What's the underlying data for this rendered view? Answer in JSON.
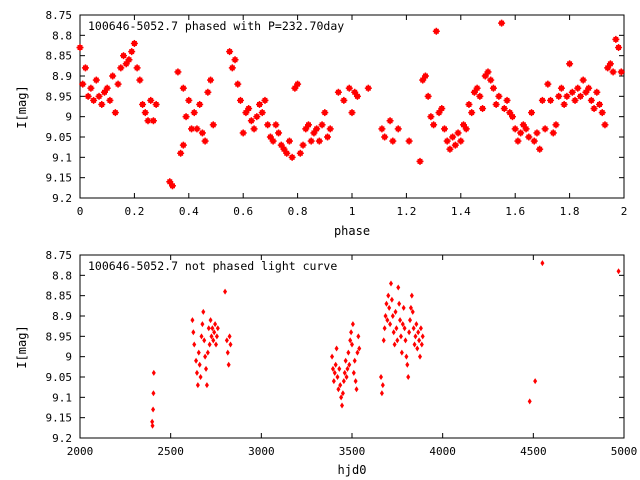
{
  "chart_data": [
    {
      "type": "scatter",
      "title": "100646-5052.7 phased with P=232.70day",
      "xlabel": "phase",
      "ylabel": "I[mag]",
      "xlim": [
        0,
        2
      ],
      "ylim": [
        8.75,
        9.2
      ],
      "y_inverted": true,
      "x_ticks": [
        "0",
        "0.2",
        "0.4",
        "0.6",
        "0.8",
        "1",
        "1.2",
        "1.4",
        "1.6",
        "1.8",
        "2"
      ],
      "y_ticks": [
        "8.75",
        "8.8",
        "8.85",
        "8.9",
        "8.95",
        "9",
        "9.05",
        "9.1",
        "9.15",
        "9.2"
      ],
      "marker": "star",
      "color": "#ff0000",
      "points": [
        [
          0.0,
          8.83
        ],
        [
          0.01,
          8.92
        ],
        [
          0.02,
          8.88
        ],
        [
          0.03,
          8.95
        ],
        [
          0.04,
          8.93
        ],
        [
          0.05,
          8.96
        ],
        [
          0.06,
          8.91
        ],
        [
          0.07,
          8.95
        ],
        [
          0.08,
          8.97
        ],
        [
          0.09,
          8.94
        ],
        [
          0.1,
          8.93
        ],
        [
          0.11,
          8.96
        ],
        [
          0.12,
          8.9
        ],
        [
          0.13,
          8.99
        ],
        [
          0.14,
          8.92
        ],
        [
          0.15,
          8.88
        ],
        [
          0.16,
          8.85
        ],
        [
          0.17,
          8.87
        ],
        [
          0.18,
          8.86
        ],
        [
          0.19,
          8.84
        ],
        [
          0.2,
          8.82
        ],
        [
          0.21,
          8.88
        ],
        [
          0.22,
          8.91
        ],
        [
          0.23,
          8.97
        ],
        [
          0.24,
          8.99
        ],
        [
          0.25,
          9.01
        ],
        [
          0.26,
          8.96
        ],
        [
          0.27,
          9.01
        ],
        [
          0.28,
          8.97
        ],
        [
          0.33,
          9.16
        ],
        [
          0.34,
          9.17
        ],
        [
          0.36,
          8.89
        ],
        [
          0.37,
          9.09
        ],
        [
          0.38,
          9.07
        ],
        [
          0.38,
          8.93
        ],
        [
          0.39,
          9.0
        ],
        [
          0.4,
          8.96
        ],
        [
          0.41,
          9.03
        ],
        [
          0.42,
          8.99
        ],
        [
          0.43,
          9.03
        ],
        [
          0.44,
          8.97
        ],
        [
          0.45,
          9.04
        ],
        [
          0.46,
          9.06
        ],
        [
          0.47,
          8.94
        ],
        [
          0.48,
          8.91
        ],
        [
          0.49,
          9.02
        ],
        [
          0.55,
          8.84
        ],
        [
          0.56,
          8.88
        ],
        [
          0.57,
          8.86
        ],
        [
          0.58,
          8.92
        ],
        [
          0.59,
          8.96
        ],
        [
          0.6,
          9.04
        ],
        [
          0.61,
          8.99
        ],
        [
          0.62,
          8.98
        ],
        [
          0.63,
          9.01
        ],
        [
          0.64,
          9.03
        ],
        [
          0.65,
          9.0
        ],
        [
          0.66,
          8.97
        ],
        [
          0.67,
          8.99
        ],
        [
          0.68,
          8.96
        ],
        [
          0.69,
          9.02
        ],
        [
          0.7,
          9.05
        ],
        [
          0.71,
          9.06
        ],
        [
          0.72,
          9.02
        ],
        [
          0.73,
          9.04
        ],
        [
          0.74,
          9.07
        ],
        [
          0.75,
          9.08
        ],
        [
          0.76,
          9.09
        ],
        [
          0.77,
          9.06
        ],
        [
          0.78,
          9.1
        ],
        [
          0.79,
          8.93
        ],
        [
          0.8,
          8.92
        ],
        [
          0.81,
          9.09
        ],
        [
          0.82,
          9.07
        ],
        [
          0.83,
          9.03
        ],
        [
          0.84,
          9.02
        ],
        [
          0.85,
          9.06
        ],
        [
          0.86,
          9.04
        ],
        [
          0.87,
          9.03
        ],
        [
          0.88,
          9.06
        ],
        [
          0.89,
          9.02
        ],
        [
          0.9,
          8.99
        ],
        [
          0.91,
          9.05
        ],
        [
          0.92,
          9.03
        ],
        [
          0.95,
          8.94
        ],
        [
          0.97,
          8.96
        ],
        [
          0.99,
          8.93
        ],
        [
          1.0,
          8.99
        ],
        [
          1.01,
          8.94
        ],
        [
          1.02,
          8.95
        ],
        [
          1.06,
          8.93
        ],
        [
          1.11,
          9.03
        ],
        [
          1.12,
          9.05
        ],
        [
          1.14,
          9.01
        ],
        [
          1.15,
          9.06
        ],
        [
          1.17,
          9.03
        ],
        [
          1.21,
          9.06
        ],
        [
          1.25,
          9.11
        ],
        [
          1.26,
          8.91
        ],
        [
          1.27,
          8.9
        ],
        [
          1.28,
          8.95
        ],
        [
          1.29,
          9.0
        ],
        [
          1.3,
          9.02
        ],
        [
          1.31,
          8.79
        ],
        [
          1.32,
          8.99
        ],
        [
          1.33,
          8.98
        ],
        [
          1.34,
          9.03
        ],
        [
          1.35,
          9.06
        ],
        [
          1.36,
          9.08
        ],
        [
          1.37,
          9.05
        ],
        [
          1.38,
          9.07
        ],
        [
          1.39,
          9.04
        ],
        [
          1.4,
          9.06
        ],
        [
          1.41,
          9.02
        ],
        [
          1.42,
          9.03
        ],
        [
          1.43,
          8.97
        ],
        [
          1.44,
          8.99
        ],
        [
          1.45,
          8.94
        ],
        [
          1.46,
          8.93
        ],
        [
          1.47,
          8.95
        ],
        [
          1.48,
          8.98
        ],
        [
          1.49,
          8.9
        ],
        [
          1.5,
          8.89
        ],
        [
          1.51,
          8.91
        ],
        [
          1.52,
          8.93
        ],
        [
          1.53,
          8.97
        ],
        [
          1.54,
          8.95
        ],
        [
          1.55,
          8.77
        ],
        [
          1.56,
          8.98
        ],
        [
          1.57,
          8.96
        ],
        [
          1.58,
          8.99
        ],
        [
          1.59,
          9.0
        ],
        [
          1.6,
          9.03
        ],
        [
          1.61,
          9.06
        ],
        [
          1.62,
          9.04
        ],
        [
          1.63,
          9.02
        ],
        [
          1.64,
          9.03
        ],
        [
          1.65,
          9.05
        ],
        [
          1.66,
          8.99
        ],
        [
          1.67,
          9.06
        ],
        [
          1.68,
          9.04
        ],
        [
          1.69,
          9.08
        ],
        [
          1.7,
          8.96
        ],
        [
          1.71,
          9.03
        ],
        [
          1.72,
          8.92
        ],
        [
          1.73,
          8.96
        ],
        [
          1.74,
          9.04
        ],
        [
          1.75,
          9.02
        ],
        [
          1.76,
          8.95
        ],
        [
          1.77,
          8.93
        ],
        [
          1.78,
          8.97
        ],
        [
          1.79,
          8.95
        ],
        [
          1.8,
          8.87
        ],
        [
          1.81,
          8.94
        ],
        [
          1.82,
          8.96
        ],
        [
          1.83,
          8.93
        ],
        [
          1.84,
          8.95
        ],
        [
          1.85,
          8.91
        ],
        [
          1.86,
          8.94
        ],
        [
          1.87,
          8.93
        ],
        [
          1.88,
          8.96
        ],
        [
          1.89,
          8.98
        ],
        [
          1.9,
          8.94
        ],
        [
          1.91,
          8.97
        ],
        [
          1.92,
          8.99
        ],
        [
          1.93,
          9.02
        ],
        [
          1.94,
          8.88
        ],
        [
          1.95,
          8.87
        ],
        [
          1.96,
          8.89
        ],
        [
          1.97,
          8.81
        ],
        [
          1.98,
          8.83
        ],
        [
          1.99,
          8.89
        ]
      ]
    },
    {
      "type": "scatter",
      "title": "100646-5052.7 not phased light curve",
      "xlabel": "hjd0",
      "ylabel": "I[mag]",
      "xlim": [
        2000,
        5000
      ],
      "ylim": [
        8.75,
        9.2
      ],
      "y_inverted": true,
      "x_ticks": [
        "2000",
        "2500",
        "3000",
        "3500",
        "4000",
        "4500",
        "5000"
      ],
      "y_ticks": [
        "8.75",
        "8.8",
        "8.85",
        "8.9",
        "8.95",
        "9",
        "9.05",
        "9.1",
        "9.15",
        "9.2"
      ],
      "marker": "diamond",
      "color": "#ff0000",
      "points": [
        [
          2398,
          9.16
        ],
        [
          2400,
          9.17
        ],
        [
          2403,
          9.13
        ],
        [
          2405,
          9.09
        ],
        [
          2407,
          9.04
        ],
        [
          2620,
          8.91
        ],
        [
          2625,
          8.94
        ],
        [
          2630,
          8.97
        ],
        [
          2640,
          9.01
        ],
        [
          2645,
          9.04
        ],
        [
          2650,
          9.07
        ],
        [
          2655,
          8.99
        ],
        [
          2660,
          9.02
        ],
        [
          2665,
          9.05
        ],
        [
          2670,
          8.95
        ],
        [
          2675,
          8.92
        ],
        [
          2680,
          8.89
        ],
        [
          2685,
          8.96
        ],
        [
          2690,
          9.0
        ],
        [
          2695,
          9.03
        ],
        [
          2700,
          9.07
        ],
        [
          2705,
          8.99
        ],
        [
          2710,
          8.93
        ],
        [
          2715,
          8.97
        ],
        [
          2720,
          8.91
        ],
        [
          2725,
          8.95
        ],
        [
          2730,
          8.93
        ],
        [
          2735,
          8.96
        ],
        [
          2740,
          8.94
        ],
        [
          2745,
          8.92
        ],
        [
          2750,
          8.97
        ],
        [
          2755,
          8.95
        ],
        [
          2760,
          8.93
        ],
        [
          2800,
          8.84
        ],
        [
          2810,
          8.96
        ],
        [
          2815,
          8.99
        ],
        [
          2820,
          9.02
        ],
        [
          2825,
          8.95
        ],
        [
          2830,
          8.97
        ],
        [
          3390,
          9.0
        ],
        [
          3395,
          9.03
        ],
        [
          3400,
          9.06
        ],
        [
          3405,
          9.04
        ],
        [
          3410,
          9.02
        ],
        [
          3415,
          8.98
        ],
        [
          3420,
          9.05
        ],
        [
          3425,
          9.08
        ],
        [
          3430,
          9.03
        ],
        [
          3435,
          9.07
        ],
        [
          3440,
          9.1
        ],
        [
          3445,
          9.12
        ],
        [
          3450,
          9.09
        ],
        [
          3455,
          9.06
        ],
        [
          3460,
          9.04
        ],
        [
          3465,
          9.01
        ],
        [
          3470,
          9.05
        ],
        [
          3475,
          9.03
        ],
        [
          3480,
          8.99
        ],
        [
          3485,
          9.02
        ],
        [
          3490,
          8.96
        ],
        [
          3495,
          8.94
        ],
        [
          3500,
          8.97
        ],
        [
          3505,
          8.92
        ],
        [
          3510,
          9.04
        ],
        [
          3515,
          9.01
        ],
        [
          3520,
          9.06
        ],
        [
          3525,
          9.08
        ],
        [
          3530,
          8.99
        ],
        [
          3535,
          8.95
        ],
        [
          3540,
          8.98
        ],
        [
          3660,
          9.05
        ],
        [
          3665,
          9.09
        ],
        [
          3670,
          9.07
        ],
        [
          3675,
          8.96
        ],
        [
          3680,
          8.93
        ],
        [
          3685,
          8.9
        ],
        [
          3690,
          8.87
        ],
        [
          3695,
          8.91
        ],
        [
          3700,
          8.85
        ],
        [
          3705,
          8.88
        ],
        [
          3710,
          8.92
        ],
        [
          3715,
          8.82
        ],
        [
          3720,
          8.86
        ],
        [
          3725,
          8.9
        ],
        [
          3730,
          8.94
        ],
        [
          3735,
          8.97
        ],
        [
          3740,
          8.89
        ],
        [
          3745,
          8.93
        ],
        [
          3750,
          8.96
        ],
        [
          3755,
          8.83
        ],
        [
          3760,
          8.87
        ],
        [
          3765,
          8.91
        ],
        [
          3770,
          8.95
        ],
        [
          3775,
          8.99
        ],
        [
          3780,
          8.92
        ],
        [
          3785,
          8.88
        ],
        [
          3790,
          8.93
        ],
        [
          3795,
          8.96
        ],
        [
          3800,
          9.0
        ],
        [
          3805,
          9.02
        ],
        [
          3810,
          9.05
        ],
        [
          3815,
          8.94
        ],
        [
          3820,
          8.91
        ],
        [
          3825,
          8.88
        ],
        [
          3830,
          8.85
        ],
        [
          3835,
          8.89
        ],
        [
          3840,
          8.93
        ],
        [
          3845,
          8.97
        ],
        [
          3850,
          8.95
        ],
        [
          3855,
          8.92
        ],
        [
          3860,
          8.98
        ],
        [
          3865,
          8.94
        ],
        [
          3870,
          8.96
        ],
        [
          3875,
          9.0
        ],
        [
          3880,
          8.93
        ],
        [
          3885,
          8.97
        ],
        [
          3890,
          8.95
        ],
        [
          4480,
          9.11
        ],
        [
          4510,
          9.06
        ],
        [
          4550,
          8.77
        ],
        [
          4970,
          8.79
        ]
      ]
    }
  ]
}
